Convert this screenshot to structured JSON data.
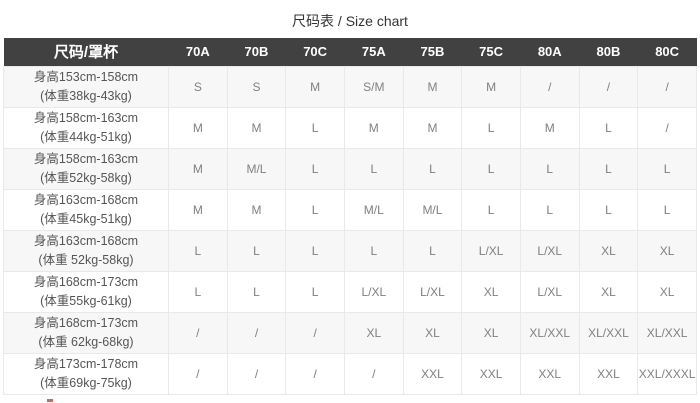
{
  "page": {
    "title": "尺码表 / Size chart"
  },
  "colors": {
    "header_bg": "#414141",
    "header_text": "#ffffff",
    "stripe_bg": "#f7f7f7",
    "border": "#e9e9e9",
    "label_text": "#555555",
    "cell_text": "#808080",
    "red_mark": "#e8604c"
  },
  "table": {
    "columns": [
      "尺码/罩杯",
      "70A",
      "70B",
      "70C",
      "75A",
      "75B",
      "75C",
      "80A",
      "80B",
      "80C"
    ],
    "rows": [
      {
        "label_line1": "身高153cm-158cm",
        "label_line2": "(体重38kg-43kg)",
        "values": [
          "S",
          "S",
          "M",
          "S/M",
          "M",
          "M",
          "/",
          "/",
          "/"
        ]
      },
      {
        "label_line1": "身高158cm-163cm",
        "label_line2": "(体重44kg-51kg)",
        "values": [
          "M",
          "M",
          "L",
          "M",
          "M",
          "L",
          "M",
          "L",
          "/"
        ]
      },
      {
        "label_line1": "身高158cm-163cm",
        "label_line2": "(体重52kg-58kg)",
        "values": [
          "M",
          "M/L",
          "L",
          "L",
          "L",
          "L",
          "L",
          "L",
          "L"
        ]
      },
      {
        "label_line1": "身高163cm-168cm",
        "label_line2": "(体重45kg-51kg)",
        "values": [
          "M",
          "M",
          "L",
          "M/L",
          "M/L",
          "L",
          "L",
          "L",
          "L"
        ]
      },
      {
        "label_line1": "身高163cm-168cm",
        "label_line2": "(体重 52kg-58kg)",
        "values": [
          "L",
          "L",
          "L",
          "L",
          "L",
          "L/XL",
          "L/XL",
          "XL",
          "XL"
        ]
      },
      {
        "label_line1": "身高168cm-173cm",
        "label_line2": "(体重55kg-61kg)",
        "values": [
          "L",
          "L",
          "L",
          "L/XL",
          "L/XL",
          "XL",
          "L/XL",
          "XL",
          "XL"
        ]
      },
      {
        "label_line1": "身高168cm-173cm",
        "label_line2": "(体重 62kg-68kg)",
        "values": [
          "/",
          "/",
          "/",
          "XL",
          "XL",
          "XL",
          "XL/XXL",
          "XL/XXL",
          "XL/XXL"
        ]
      },
      {
        "label_line1": "身高173cm-178cm",
        "label_line2": "(体重69kg-75kg)",
        "values": [
          "/",
          "/",
          "/",
          "/",
          "XXL",
          "XXL",
          "XXL",
          "XXL",
          "XXL/XXXL"
        ]
      }
    ]
  }
}
